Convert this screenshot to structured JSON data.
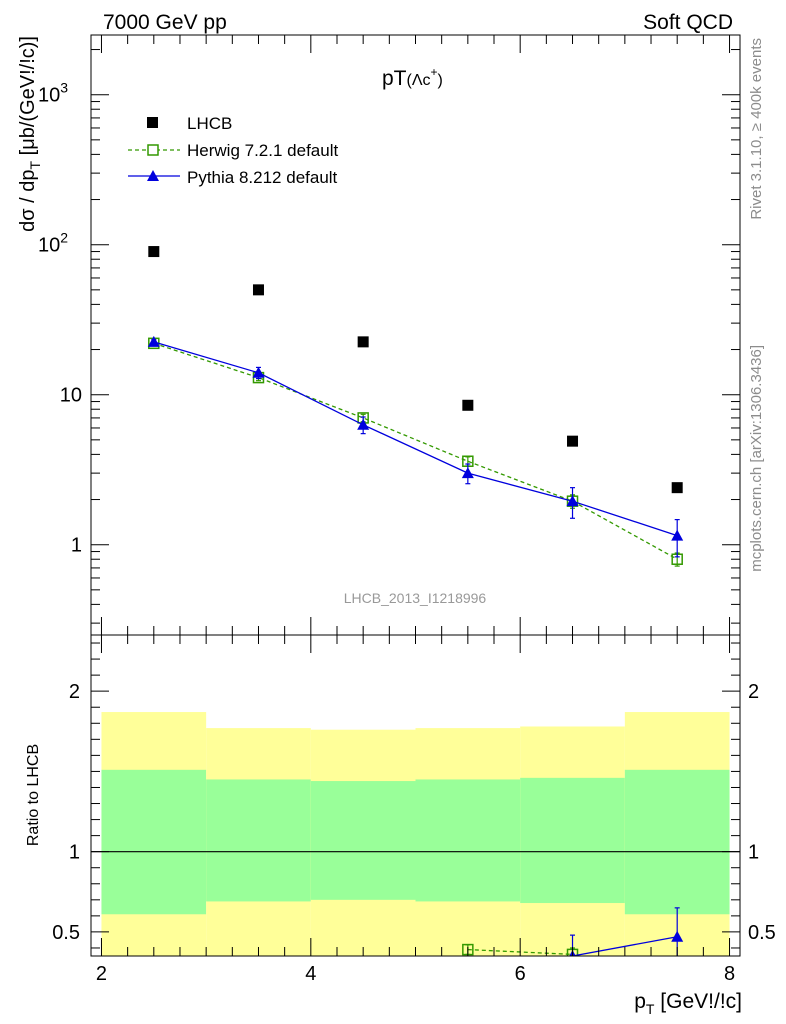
{
  "header": {
    "left": "7000 GeV pp",
    "right": "Soft QCD"
  },
  "side_labels": {
    "rivet": "Rivet 3.1.10, ≥ 400k events",
    "mcplots": "mcplots.cern.ch [arXiv:1306.3436]"
  },
  "chart_data": [
    {
      "type": "scatter",
      "title": "pT(Λc⁺)",
      "title_main": "pT",
      "title_sub": "(Λc",
      "title_sup": "+",
      "title_close": ")",
      "ylabel": "dσ / dp_T [μb/(GeV!/!c)]",
      "ylabel_main": "dσ / dp",
      "ylabel_sub": "T",
      "ylabel_tail": " [μb/(GeV!/!c)]",
      "yscale": "log",
      "ylim": [
        0.25,
        2500
      ],
      "xlim": [
        1.9,
        8.1
      ],
      "x_ticks": [
        2,
        4,
        6,
        8
      ],
      "y_ticks": [
        {
          "value": 1,
          "label": "1"
        },
        {
          "value": 10,
          "label": "10"
        },
        {
          "value": 100,
          "label": "10",
          "sup": "2"
        },
        {
          "value": 1000,
          "label": "10",
          "sup": "3"
        }
      ],
      "watermark": "LHCB_2013_I1218996",
      "legend_position": "top-left",
      "series": [
        {
          "name": "LHCB",
          "color": "#000000",
          "marker": "filled-square",
          "line": "none",
          "x": [
            2.5,
            3.5,
            4.5,
            5.5,
            6.5,
            7.5
          ],
          "y": [
            90,
            50,
            22.5,
            8.5,
            4.9,
            2.4
          ]
        },
        {
          "name": "Herwig 7.2.1 default",
          "color": "#339900",
          "marker": "open-square",
          "line": "dashed",
          "x": [
            2.5,
            3.5,
            4.5,
            5.5,
            6.5,
            7.5
          ],
          "y": [
            22,
            13,
            7.0,
            3.6,
            1.95,
            0.8
          ],
          "err": [
            0.8,
            0.6,
            0.4,
            0.25,
            0.2,
            0.08
          ]
        },
        {
          "name": "Pythia 8.212 default",
          "color": "#0000dd",
          "marker": "filled-triangle",
          "line": "solid",
          "x": [
            2.5,
            3.5,
            4.5,
            5.5,
            6.5,
            7.5
          ],
          "y": [
            22.5,
            14,
            6.3,
            3.0,
            1.95,
            1.15
          ],
          "err": [
            0.8,
            1.2,
            0.8,
            0.45,
            0.45,
            0.32
          ]
        }
      ]
    },
    {
      "type": "scatter",
      "ylabel": "Ratio to LHCB",
      "xlabel": "p_T [GeV!/!c]",
      "xlabel_main": "p",
      "xlabel_sub": "T",
      "xlabel_tail": " [GeV!/!c]",
      "ylim": [
        0.35,
        2.35
      ],
      "xlim": [
        1.9,
        8.1
      ],
      "x_ticks": [
        2,
        4,
        6,
        8
      ],
      "y_ticks": [
        0.5,
        1,
        2
      ],
      "bands": {
        "yellow_color": "#ffff99",
        "green_color": "#99ff99",
        "bins": [
          {
            "x": [
              2,
              3
            ],
            "yellow": [
              0.35,
              1.87
            ],
            "green": [
              0.61,
              1.51
            ]
          },
          {
            "x": [
              3,
              4
            ],
            "yellow": [
              0.35,
              1.77
            ],
            "green": [
              0.69,
              1.45
            ]
          },
          {
            "x": [
              4,
              5
            ],
            "yellow": [
              0.35,
              1.76
            ],
            "green": [
              0.7,
              1.44
            ]
          },
          {
            "x": [
              5,
              6
            ],
            "yellow": [
              0.35,
              1.77
            ],
            "green": [
              0.69,
              1.45
            ]
          },
          {
            "x": [
              6,
              7
            ],
            "yellow": [
              0.35,
              1.78
            ],
            "green": [
              0.68,
              1.46
            ]
          },
          {
            "x": [
              7,
              8
            ],
            "yellow": [
              0.35,
              1.87
            ],
            "green": [
              0.61,
              1.51
            ]
          }
        ]
      },
      "series": [
        {
          "name": "Herwig 7.2.1 default",
          "color": "#339900",
          "marker": "open-square",
          "line": "dashed",
          "x": [
            5.5,
            6.5
          ],
          "y": [
            0.39,
            0.36
          ],
          "err": [
            0.03,
            0.04
          ]
        },
        {
          "name": "Pythia 8.212 default",
          "color": "#0000dd",
          "marker": "filled-triangle",
          "line": "solid",
          "x": [
            6.5,
            7.5
          ],
          "y": [
            0.35,
            0.47
          ],
          "err": [
            0.13,
            0.18
          ]
        }
      ]
    }
  ]
}
